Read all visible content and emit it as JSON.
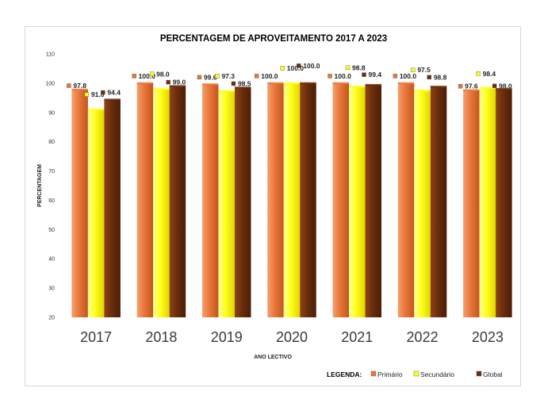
{
  "chart_data": {
    "type": "bar",
    "title": "PERCENTAGEM DE APROVEITAMENTO 2017 A 2023",
    "xlabel": "ANO LECTIVO",
    "ylabel": "PERCENTAGEM",
    "ylim": [
      20,
      110
    ],
    "yticks": [
      "20",
      "30",
      "40",
      "50",
      "60",
      "70",
      "80",
      "90",
      "100",
      "110"
    ],
    "grid": false,
    "categories": [
      "2017",
      "2018",
      "2019",
      "2020",
      "2021",
      "2022",
      "2023"
    ],
    "series": [
      {
        "name": "Primário",
        "color": "#e8763a",
        "values": [
          97.8,
          100.0,
          99.6,
          100.0,
          100.0,
          100.0,
          97.6
        ],
        "labels": [
          "97.8",
          "100.0",
          "99.6",
          "100.0",
          "100.0",
          "100.0",
          "97.6"
        ]
      },
      {
        "name": "Secundário",
        "color": "#ffff1a",
        "values": [
          91.0,
          98.0,
          97.3,
          100.0,
          98.8,
          97.5,
          98.4
        ],
        "labels": [
          "91.0",
          "98.0",
          "97.3",
          "100.0",
          "98.8",
          "97.5",
          "98.4"
        ]
      },
      {
        "name": "Global",
        "color": "#6b2d0c",
        "values": [
          94.4,
          99.0,
          98.5,
          100.0,
          99.4,
          98.8,
          98.0
        ],
        "labels": [
          "94.4",
          "99.0",
          "98.5",
          "100.0",
          "99.4",
          "98.8",
          "98.0"
        ]
      }
    ],
    "legend": {
      "title": "LEGENDA:",
      "position": "bottom-right"
    }
  }
}
